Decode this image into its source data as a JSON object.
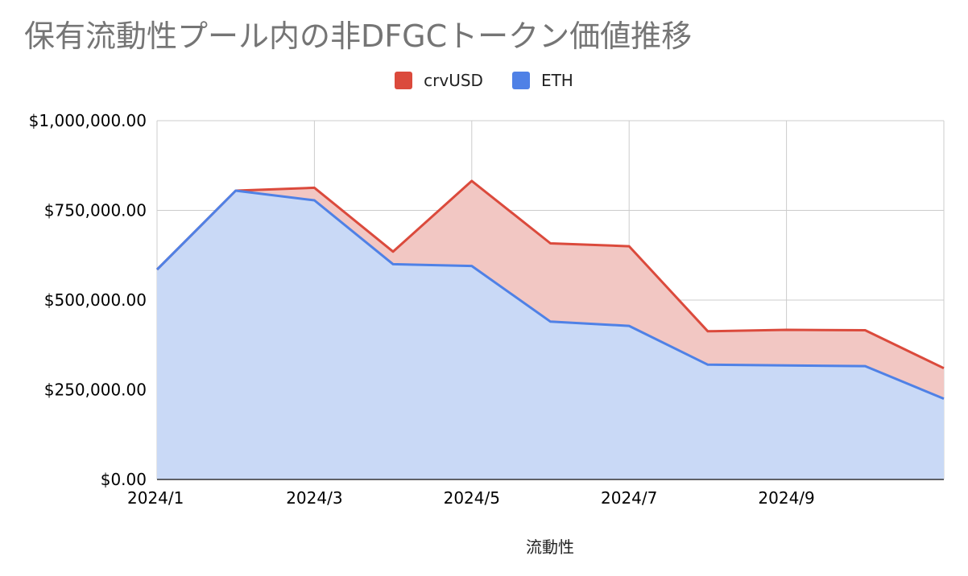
{
  "chart_data": {
    "type": "area",
    "stacked": true,
    "title": "保有流動性プール内の非DFGCトークン価値推移",
    "xlabel": "流動性",
    "ylabel": "",
    "x": [
      "2024/1",
      "2024/2",
      "2024/3",
      "2024/4",
      "2024/5",
      "2024/6",
      "2024/7",
      "2024/8",
      "2024/9",
      "2024/10",
      "2024/11"
    ],
    "x_tick_labels": [
      "2024/1",
      "2024/3",
      "2024/5",
      "2024/7",
      "2024/9"
    ],
    "y_tick_labels": [
      "$0.00",
      "$250,000.00",
      "$500,000.00",
      "$750,000.00",
      "$1,000,000.00"
    ],
    "ylim": [
      0,
      1000000
    ],
    "grid": true,
    "legend_position": "top",
    "series": [
      {
        "name": "ETH",
        "color": "#4f81e6",
        "fill": "#c9d9f6",
        "values": [
          585000,
          805000,
          778000,
          600000,
          595000,
          440000,
          428000,
          320000,
          318000,
          316000,
          225000
        ]
      },
      {
        "name": "crvUSD",
        "color": "#db4a3c",
        "fill": "#f2c7c3",
        "values": [
          0,
          0,
          35000,
          35000,
          237000,
          218000,
          222000,
          93000,
          99000,
          100000,
          85000
        ]
      }
    ]
  }
}
